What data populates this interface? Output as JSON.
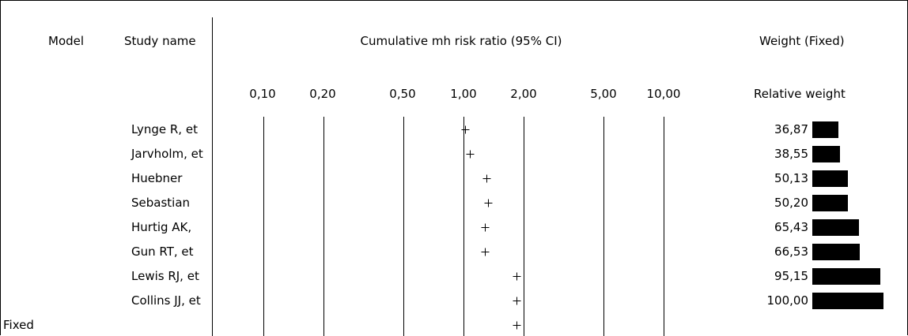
{
  "headers": {
    "model": "Model",
    "study_name": "Study name",
    "effect": "Cumulative mh risk ratio (95% CI)",
    "weight": "Weight (Fixed)",
    "relative_weight": "Relative weight"
  },
  "chart_data": {
    "type": "forest",
    "title": "Cumulative mh risk ratio (95% CI)",
    "x_scale": "log",
    "xlim": [
      0.07,
      20
    ],
    "ticks": [
      {
        "value": 0.1,
        "label": "0,10"
      },
      {
        "value": 0.2,
        "label": "0,20"
      },
      {
        "value": 0.5,
        "label": "0,50"
      },
      {
        "value": 1.0,
        "label": "1,00"
      },
      {
        "value": 2.0,
        "label": "2,00"
      },
      {
        "value": 5.0,
        "label": "5,00"
      },
      {
        "value": 10.0,
        "label": "10,00"
      }
    ],
    "studies": [
      {
        "name": "Lynge R, et",
        "risk_ratio": 1.02,
        "weight": 36.87,
        "weight_label": "36,87"
      },
      {
        "name": "Jarvholm, et",
        "risk_ratio": 1.08,
        "weight": 38.55,
        "weight_label": "38,55"
      },
      {
        "name": "Huebner",
        "risk_ratio": 1.3,
        "weight": 50.13,
        "weight_label": "50,13"
      },
      {
        "name": "Sebastian",
        "risk_ratio": 1.32,
        "weight": 50.2,
        "weight_label": "50,20"
      },
      {
        "name": "Hurtig AK,",
        "risk_ratio": 1.28,
        "weight": 65.43,
        "weight_label": "65,43"
      },
      {
        "name": "Gun RT, et",
        "risk_ratio": 1.28,
        "weight": 66.53,
        "weight_label": "66,53"
      },
      {
        "name": "Lewis RJ, et",
        "risk_ratio": 1.84,
        "weight": 95.15,
        "weight_label": "95,15"
      },
      {
        "name": "Collins JJ, et",
        "risk_ratio": 1.84,
        "weight": 100.0,
        "weight_label": "100,00"
      }
    ],
    "summary": {
      "model": "Fixed",
      "risk_ratio": 1.84
    }
  }
}
